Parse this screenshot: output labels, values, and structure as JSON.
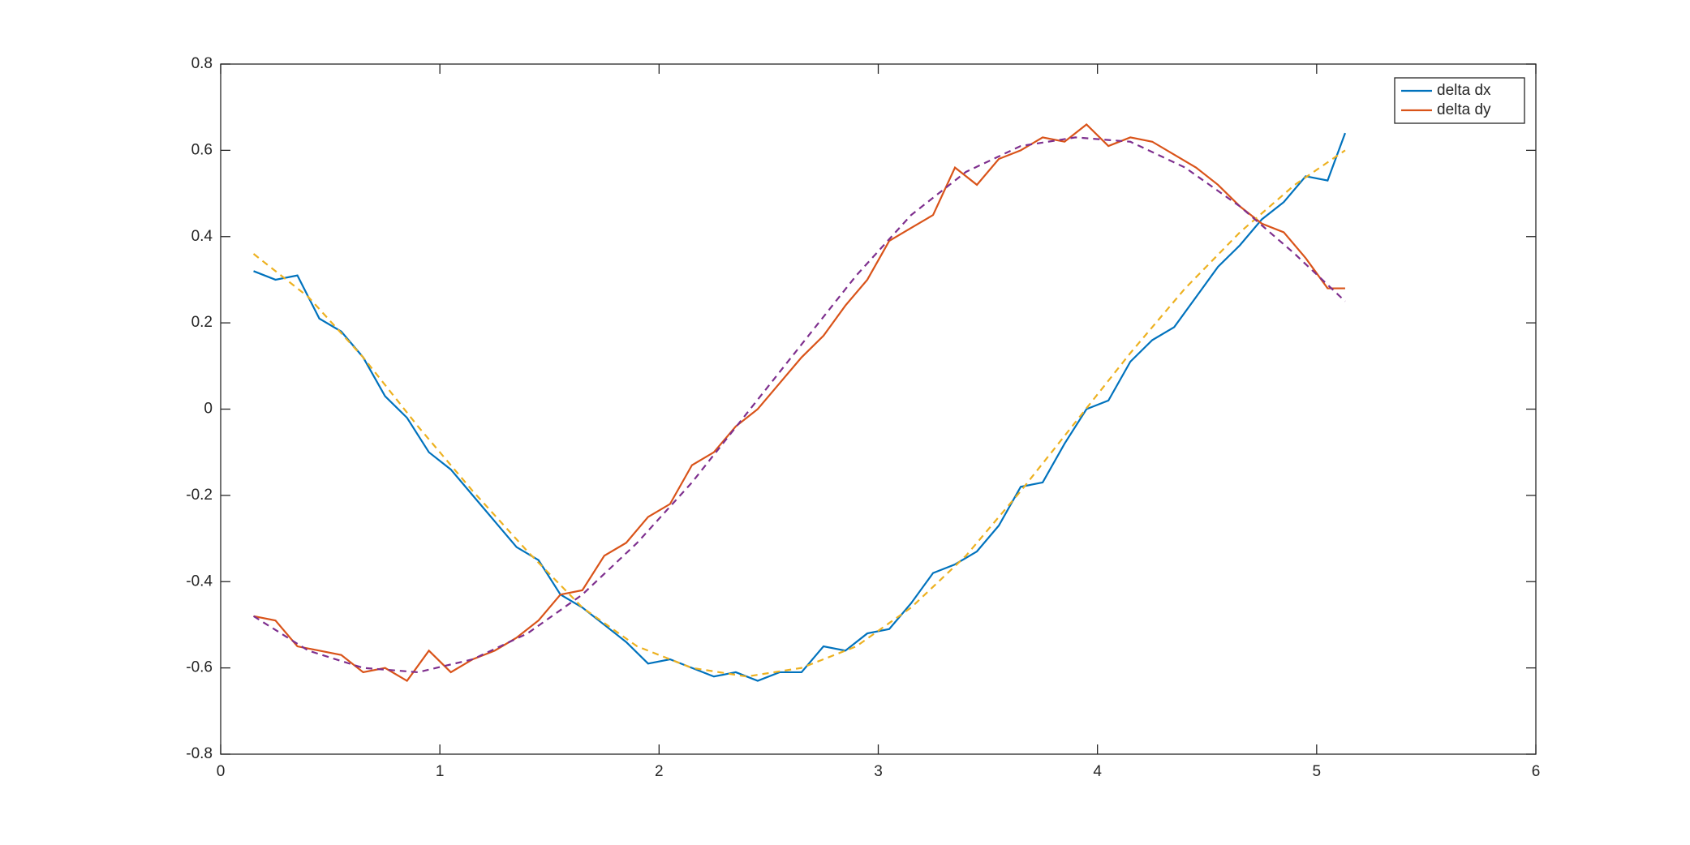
{
  "chart_data": {
    "type": "line",
    "x": [
      0.15,
      0.25,
      0.35,
      0.45,
      0.55,
      0.65,
      0.75,
      0.85,
      0.95,
      1.05,
      1.15,
      1.25,
      1.35,
      1.45,
      1.55,
      1.65,
      1.75,
      1.85,
      1.95,
      2.05,
      2.15,
      2.25,
      2.35,
      2.45,
      2.55,
      2.65,
      2.75,
      2.85,
      2.95,
      3.05,
      3.15,
      3.25,
      3.35,
      3.45,
      3.55,
      3.65,
      3.75,
      3.85,
      3.95,
      4.05,
      4.15,
      4.25,
      4.35,
      4.45,
      4.55,
      4.65,
      4.75,
      4.85,
      4.95,
      5.05,
      5.13
    ],
    "series": [
      {
        "name": "delta dx",
        "color": "#0072BD",
        "linestyle": "solid",
        "values": [
          0.32,
          0.3,
          0.31,
          0.21,
          0.18,
          0.12,
          0.03,
          -0.02,
          -0.1,
          -0.14,
          -0.2,
          -0.26,
          -0.32,
          -0.35,
          -0.43,
          -0.46,
          -0.5,
          -0.54,
          -0.59,
          -0.58,
          -0.6,
          -0.62,
          -0.61,
          -0.63,
          -0.61,
          -0.61,
          -0.55,
          -0.56,
          -0.52,
          -0.51,
          -0.45,
          -0.38,
          -0.36,
          -0.33,
          -0.27,
          -0.18,
          -0.17,
          -0.08,
          0.0,
          0.02,
          0.11,
          0.16,
          0.19,
          0.26,
          0.33,
          0.38,
          0.44,
          0.48,
          0.54,
          0.53,
          0.64
        ]
      },
      {
        "name": "delta dy",
        "color": "#D95319",
        "linestyle": "solid",
        "values": [
          -0.48,
          -0.49,
          -0.55,
          -0.56,
          -0.57,
          -0.61,
          -0.6,
          -0.63,
          -0.56,
          -0.61,
          -0.58,
          -0.56,
          -0.53,
          -0.49,
          -0.43,
          -0.42,
          -0.34,
          -0.31,
          -0.25,
          -0.22,
          -0.13,
          -0.1,
          -0.04,
          0.0,
          0.06,
          0.12,
          0.17,
          0.24,
          0.3,
          0.39,
          0.42,
          0.45,
          0.56,
          0.52,
          0.58,
          0.6,
          0.63,
          0.62,
          0.66,
          0.61,
          0.63,
          0.62,
          0.59,
          0.56,
          0.52,
          0.47,
          0.43,
          0.41,
          0.35,
          0.28,
          0.28
        ]
      },
      {
        "color": "#EDB120",
        "linestyle": "dashed",
        "x": [
          0.15,
          0.4,
          0.65,
          0.9,
          1.15,
          1.4,
          1.65,
          1.9,
          2.15,
          2.4,
          2.65,
          2.9,
          3.15,
          3.4,
          3.65,
          3.9,
          4.15,
          4.4,
          4.65,
          4.9,
          5.13
        ],
        "values": [
          0.36,
          0.26,
          0.12,
          -0.04,
          -0.19,
          -0.33,
          -0.46,
          -0.55,
          -0.6,
          -0.62,
          -0.6,
          -0.55,
          -0.46,
          -0.34,
          -0.19,
          -0.03,
          0.13,
          0.28,
          0.41,
          0.52,
          0.6
        ]
      },
      {
        "color": "#7E2F8E",
        "linestyle": "dashed",
        "x": [
          0.15,
          0.4,
          0.65,
          0.9,
          1.15,
          1.4,
          1.65,
          1.9,
          2.15,
          2.4,
          2.65,
          2.9,
          3.15,
          3.4,
          3.65,
          3.9,
          4.15,
          4.4,
          4.65,
          4.9,
          5.13
        ],
        "values": [
          -0.48,
          -0.56,
          -0.6,
          -0.61,
          -0.58,
          -0.52,
          -0.43,
          -0.31,
          -0.17,
          -0.01,
          0.15,
          0.31,
          0.45,
          0.55,
          0.61,
          0.63,
          0.62,
          0.56,
          0.47,
          0.36,
          0.25
        ]
      }
    ],
    "xlim": [
      0,
      6
    ],
    "xticks": [
      0,
      1,
      2,
      3,
      4,
      5,
      6
    ],
    "ylim": [
      -0.8,
      0.8
    ],
    "yticks": [
      -0.8,
      -0.6,
      -0.4,
      -0.2,
      0,
      0.2,
      0.4,
      0.6,
      0.8
    ],
    "grid": false,
    "legend": "northeast"
  }
}
